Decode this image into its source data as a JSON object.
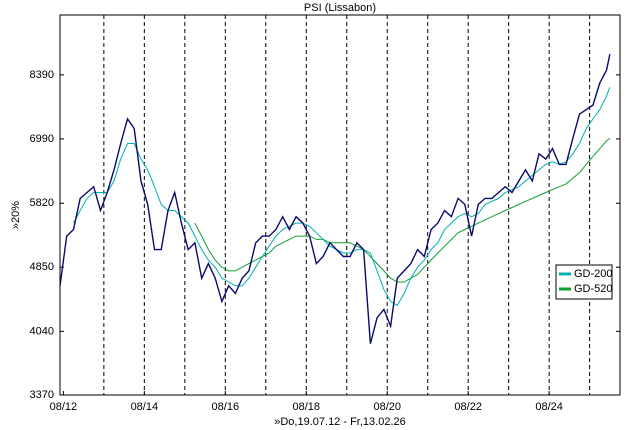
{
  "chart_data": {
    "type": "line",
    "title": "PSI (Lissabon)",
    "x_label": "»Do,19.07.12 - Fr,13.02.26",
    "y_label": "»20%",
    "log_scale": true,
    "grid": true,
    "legend": "right",
    "x": [
      "07/12",
      "09/12",
      "11/12",
      "01/13",
      "03/13",
      "05/13",
      "07/13",
      "09/13",
      "11/13",
      "01/14",
      "03/14",
      "05/14",
      "07/14",
      "09/14",
      "11/14",
      "01/15",
      "03/15",
      "05/15",
      "07/15",
      "09/15",
      "11/15",
      "01/16",
      "03/16",
      "05/16",
      "07/16",
      "09/16",
      "11/16",
      "01/17",
      "03/17",
      "05/17",
      "07/17",
      "09/17",
      "11/17",
      "01/18",
      "03/18",
      "05/18",
      "07/18",
      "09/18",
      "11/18",
      "01/19",
      "03/19",
      "05/19",
      "07/19",
      "09/19",
      "11/19",
      "01/20",
      "03/20",
      "05/20",
      "07/20",
      "09/20",
      "11/20",
      "01/21",
      "03/21",
      "05/21",
      "07/21",
      "09/21",
      "11/21",
      "01/22",
      "03/22",
      "05/22",
      "07/22",
      "09/22",
      "11/22",
      "01/23",
      "03/23",
      "05/23",
      "07/23",
      "09/23",
      "11/23",
      "01/24",
      "03/24",
      "05/24",
      "07/24",
      "09/24",
      "11/24",
      "01/25",
      "03/25",
      "05/25",
      "07/25",
      "09/25",
      "11/25",
      "01/26",
      "02/26"
    ],
    "xlim": [
      "07/12",
      "05/26"
    ],
    "xticks": [
      "08/12",
      "08/14",
      "08/16",
      "08/18",
      "08/20",
      "08/22",
      "08/24"
    ],
    "ylim": [
      3370,
      9950
    ],
    "yticks": [
      3370,
      4040,
      4850,
      5820,
      6990,
      8390
    ],
    "series": [
      {
        "name": "PSI",
        "color": "#0a0a6e",
        "values": [
          4600,
          5300,
          5400,
          5900,
          6000,
          6100,
          5700,
          6000,
          6400,
          6900,
          7400,
          7200,
          6200,
          5800,
          5100,
          5100,
          5700,
          6000,
          5500,
          5100,
          5200,
          4700,
          4900,
          4700,
          4400,
          4600,
          4500,
          4700,
          4800,
          5200,
          5300,
          5300,
          5400,
          5600,
          5400,
          5600,
          5500,
          5300,
          4900,
          5000,
          5200,
          5100,
          5000,
          5000,
          5200,
          5100,
          3900,
          4200,
          4300,
          4100,
          4700,
          4800,
          4900,
          5100,
          5000,
          5400,
          5500,
          5700,
          5600,
          5900,
          5800,
          5300,
          5800,
          5900,
          5900,
          6000,
          6100,
          6000,
          6200,
          6400,
          6200,
          6700,
          6600,
          6800,
          6500,
          6500,
          7000,
          7500,
          7600,
          7700,
          8200,
          8500,
          8900
        ]
      },
      {
        "name": "GD-200",
        "color": "#00b0b0",
        "values": [
          null,
          null,
          5500,
          5700,
          5900,
          6000,
          6000,
          6000,
          6200,
          6600,
          6900,
          6900,
          6600,
          6400,
          6100,
          5800,
          5700,
          5700,
          5600,
          5500,
          5300,
          5100,
          4950,
          4850,
          4700,
          4650,
          4600,
          4600,
          4700,
          4850,
          5000,
          5150,
          5300,
          5400,
          5450,
          5500,
          5500,
          5450,
          5350,
          5250,
          5150,
          5100,
          5050,
          5050,
          5100,
          5100,
          5050,
          4800,
          4550,
          4400,
          4350,
          4500,
          4700,
          4850,
          4950,
          5100,
          5200,
          5400,
          5500,
          5600,
          5650,
          5600,
          5650,
          5800,
          5850,
          5900,
          6000,
          6050,
          6100,
          6200,
          6300,
          6400,
          6500,
          6550,
          6500,
          6550,
          6700,
          6900,
          7200,
          7400,
          7600,
          7900,
          8100
        ]
      },
      {
        "name": "GD-520",
        "color": "#10a030",
        "values": [
          null,
          null,
          null,
          null,
          null,
          null,
          null,
          null,
          null,
          null,
          null,
          null,
          null,
          null,
          null,
          null,
          null,
          null,
          null,
          null,
          5500,
          5300,
          5100,
          4950,
          4850,
          4800,
          4800,
          4850,
          4900,
          4950,
          5000,
          5050,
          5150,
          5200,
          5250,
          5300,
          5300,
          5300,
          5250,
          5250,
          5200,
          5200,
          5200,
          5200,
          5150,
          5100,
          5000,
          4900,
          4800,
          4700,
          4650,
          4650,
          4700,
          4750,
          4850,
          4950,
          5050,
          5150,
          5250,
          5350,
          5400,
          5450,
          5500,
          5550,
          5600,
          5650,
          5700,
          5750,
          5800,
          5850,
          5900,
          5950,
          6000,
          6050,
          6100,
          6150,
          6250,
          6350,
          6500,
          6650,
          6800,
          6950,
          7000
        ]
      }
    ]
  }
}
